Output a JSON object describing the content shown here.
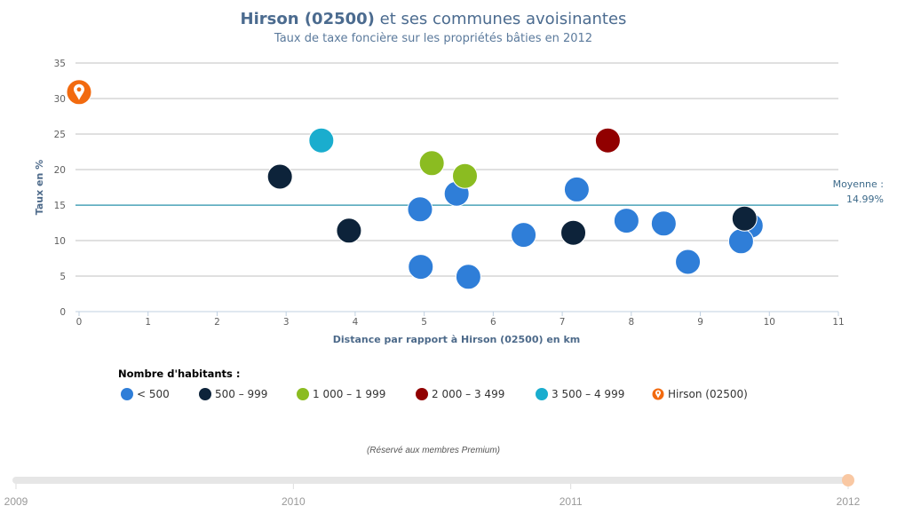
{
  "colors": {
    "lt500": "#2f7ed8",
    "500_999": "#0d233a",
    "1000_1999": "#8bbc21",
    "2000_3499": "#910000",
    "3500_4999": "#1aadce",
    "hirson": "#f26a0f",
    "average_line": "#4aa3b8",
    "grid": "#c0c0c0",
    "title": "#4b6b8f"
  },
  "chart_data": {
    "type": "scatter",
    "title_bold": "Hirson (02500)",
    "title_rest": " et ses communes avoisinantes",
    "subtitle": "Taux de taxe foncière sur les propriétés bâties en 2012",
    "xlabel": "Distance par rapport à Hirson (02500) en km",
    "ylabel": "Taux en %",
    "xlim": [
      0,
      11
    ],
    "ylim": [
      0,
      35
    ],
    "x_ticks": [
      "0",
      "1",
      "2",
      "3",
      "4",
      "5",
      "6",
      "7",
      "8",
      "9",
      "10",
      "11"
    ],
    "y_ticks": [
      "0",
      "5",
      "10",
      "15",
      "20",
      "25",
      "30",
      "35"
    ],
    "grid": true,
    "average": {
      "value": 14.99,
      "label_line1": "Moyenne :",
      "label_line2": "14.99%"
    },
    "series": [
      {
        "key": "lt500",
        "name": "< 500",
        "points": [
          [
            4.94,
            14.4
          ],
          [
            5.47,
            16.6
          ],
          [
            4.95,
            6.3
          ],
          [
            5.64,
            4.9
          ],
          [
            6.44,
            10.8
          ],
          [
            7.21,
            17.2
          ],
          [
            7.93,
            12.8
          ],
          [
            8.47,
            12.4
          ],
          [
            8.82,
            7.0
          ],
          [
            9.73,
            12.1
          ],
          [
            9.59,
            9.9
          ]
        ]
      },
      {
        "key": "500_999",
        "name": "500 – 999",
        "points": [
          [
            2.91,
            19.0
          ],
          [
            3.91,
            11.4
          ],
          [
            7.16,
            11.1
          ],
          [
            9.64,
            13.1
          ]
        ]
      },
      {
        "key": "1000_1999",
        "name": "1 000 – 1 999",
        "points": [
          [
            5.11,
            20.9
          ],
          [
            5.59,
            19.1
          ]
        ]
      },
      {
        "key": "2000_3499",
        "name": "2 000 – 3 499",
        "points": [
          [
            7.66,
            24.1
          ]
        ]
      },
      {
        "key": "3500_4999",
        "name": "3 500 – 4 999",
        "points": [
          [
            3.51,
            24.1
          ]
        ]
      },
      {
        "key": "hirson",
        "name": "Hirson (02500)",
        "points": [
          [
            0,
            30.9
          ]
        ]
      }
    ],
    "legend": {
      "title": "Nombre d'habitants :",
      "position": "bottom-left"
    }
  },
  "footer": {
    "premium_note": "(Réservé aux membres Premium)"
  },
  "year_slider": {
    "years": [
      "2009",
      "2010",
      "2011",
      "2012"
    ],
    "selected": "2012",
    "selected_index": 3
  }
}
